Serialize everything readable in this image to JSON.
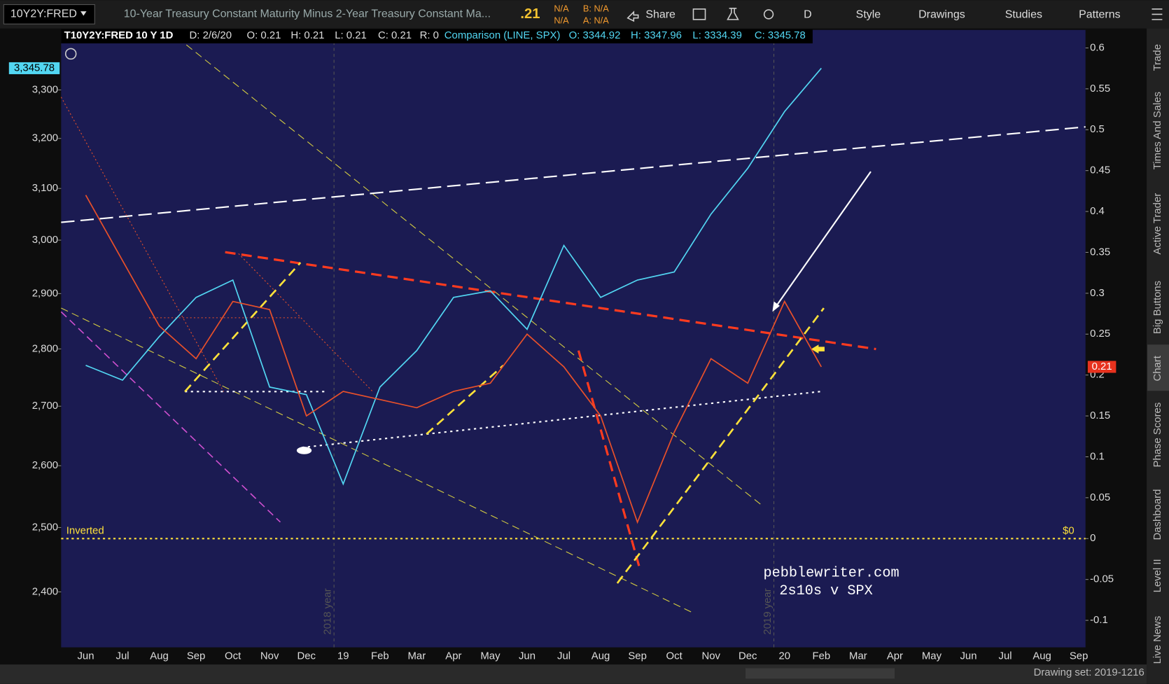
{
  "toolbar": {
    "symbol": "10Y2Y:FRED",
    "description": "10-Year Treasury Constant Maturity Minus 2-Year Treasury Constant Ma...",
    "last": ".21",
    "change": "N/A",
    "change_pct": "N/A",
    "bid": "B: N/A",
    "ask": "A: N/A",
    "share": "Share",
    "aggregation": "D",
    "style": "Style",
    "drawings": "Drawings",
    "studies": "Studies",
    "patterns": "Patterns"
  },
  "legend": {
    "symbol": "T10Y2Y:FRED 10 Y 1D",
    "date": "D: 2/6/20",
    "open": "O: 0.21",
    "high": "H: 0.21",
    "low": "L: 0.21",
    "close": "C: 0.21",
    "range": "R: 0",
    "comparison": "Comparison (LINE, SPX)",
    "cmp_open": "O: 3344.92",
    "cmp_high": "H: 3347.96",
    "cmp_low": "L: 3334.39",
    "cmp_close": "C: 3345.78"
  },
  "chart_data": {
    "type": "line",
    "categories": [
      "Jun",
      "Jul",
      "Aug",
      "Sep",
      "Oct",
      "Nov",
      "Dec",
      "19",
      "Feb",
      "Mar",
      "Apr",
      "May",
      "Jun",
      "Jul",
      "Aug",
      "Sep",
      "Oct",
      "Nov",
      "Dec",
      "20",
      "Feb",
      "Mar",
      "Apr",
      "May",
      "Jun",
      "Jul",
      "Aug",
      "Sep"
    ],
    "series": [
      {
        "color": "#52d6f2",
        "axis": "y",
        "values": [
          2771,
          2745,
          2822,
          2893,
          2925,
          2733,
          2720,
          2570,
          2733,
          2797,
          2893,
          2905,
          2835,
          2990,
          2893,
          2925,
          2940,
          3050,
          3140,
          3255,
          3345.78,
          null,
          null,
          null,
          null,
          null,
          null,
          null
        ]
      },
      {
        "color": "#e8502a",
        "axis": "y2",
        "values": [
          0.42,
          0.34,
          0.26,
          0.22,
          0.29,
          0.28,
          0.15,
          0.18,
          0.17,
          0.16,
          0.18,
          0.19,
          0.25,
          0.21,
          0.15,
          0.02,
          0.13,
          0.22,
          0.19,
          0.29,
          0.21,
          null,
          null,
          null,
          null,
          null,
          null,
          null
        ]
      }
    ],
    "ylog": true,
    "ylim": [
      2317,
      3428
    ],
    "yticks": [
      {
        "value": 2400,
        "label": "2,400"
      },
      {
        "value": 2500,
        "label": "2,500"
      },
      {
        "value": 2600,
        "label": "2,600"
      },
      {
        "value": 2700,
        "label": "2,700"
      },
      {
        "value": 2800,
        "label": "2,800"
      },
      {
        "value": 2900,
        "label": "2,900"
      },
      {
        "value": 3000,
        "label": "3,000"
      },
      {
        "value": 3100,
        "label": "3,100"
      },
      {
        "value": 3200,
        "label": "3,200"
      },
      {
        "value": 3300,
        "label": "3,300"
      }
    ],
    "y2lim": [
      -0.133,
      0.622
    ],
    "y2ticks": [
      -0.1,
      -0.05,
      0,
      0.05,
      0.1,
      0.15,
      0.2,
      0.25,
      0.3,
      0.35,
      0.4,
      0.45,
      0.5,
      0.55,
      0.6
    ],
    "y_last": {
      "value": 3345.78,
      "label": "3,345.78"
    },
    "y2_last": 0.21,
    "zero_line": {
      "value": 0,
      "label": "Inverted",
      "tag": "$0"
    },
    "year_labels": [
      "2018 year",
      "2019 year"
    ],
    "watermark": [
      "pebblewriter.com",
      "2s10s v SPX"
    ]
  },
  "side_tabs": [
    "Trade",
    "Times And Sales",
    "Active Trader",
    "Big Buttons",
    "Chart",
    "Phase Scores",
    "Dashboard",
    "Level II",
    "Live News"
  ],
  "status_bar": {
    "drawing_set": "Drawing set: 2019-1216"
  }
}
